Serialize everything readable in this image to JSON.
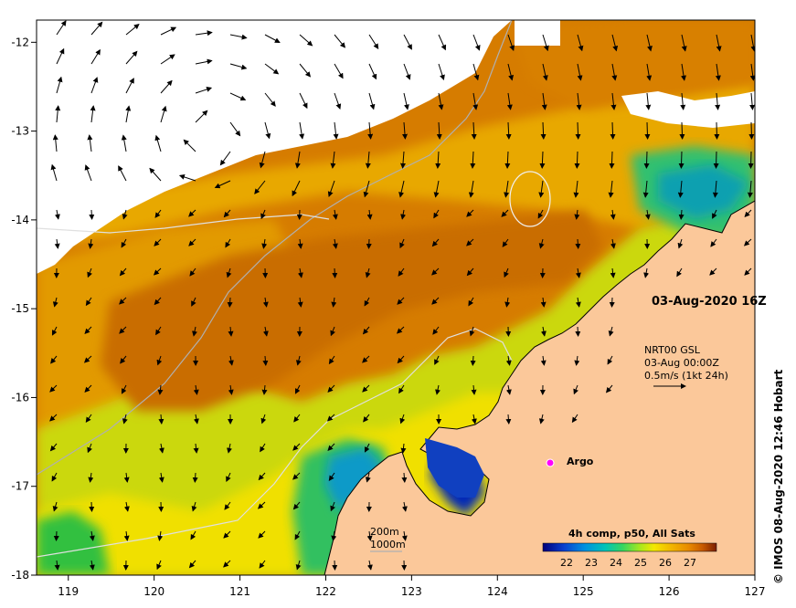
{
  "map": {
    "x_ticks": [
      "119",
      "120",
      "121",
      "122",
      "123",
      "124",
      "125",
      "126",
      "127"
    ],
    "y_ticks": [
      "-12",
      "-13",
      "-14",
      "-15",
      "-16",
      "-17",
      "-18"
    ],
    "lon_range": [
      118.63,
      127.0
    ],
    "lat_range": [
      -18.0,
      -11.75
    ]
  },
  "labels": {
    "date_stamp": "03-Aug-2020 16Z",
    "current_source": "NRT00 GSL",
    "current_time": "03-Aug 00:00Z",
    "current_scale": "0.5m/s (1kt 24h)",
    "argo": "Argo",
    "contour_200": "200m",
    "contour_1000": "1000m",
    "colorbar_title": "4h comp, p50, All Sats",
    "credit": "© IMOS 08-Aug-2020 12:46 Hobart"
  },
  "colorbar": {
    "ticks": [
      "22",
      "23",
      "24",
      "25",
      "26",
      "27"
    ],
    "colors": [
      "#00007a",
      "#0a3fcf",
      "#0091e0",
      "#00c4b8",
      "#37d660",
      "#a8e81e",
      "#f4e800",
      "#f2b600",
      "#e88a00",
      "#d66a00",
      "#b04000",
      "#7a1e00"
    ]
  },
  "colors": {
    "land": "#fbc89a",
    "cloud": "#ffffff",
    "sea_hot": "#d27500",
    "sea_warm": "#e6a000",
    "sea_mid": "#d6e000",
    "sea_cool": "#4cd040",
    "sea_cold": "#00a0a0",
    "sea_coldest": "#0018b0",
    "argo_marker": "#ff00ff"
  }
}
